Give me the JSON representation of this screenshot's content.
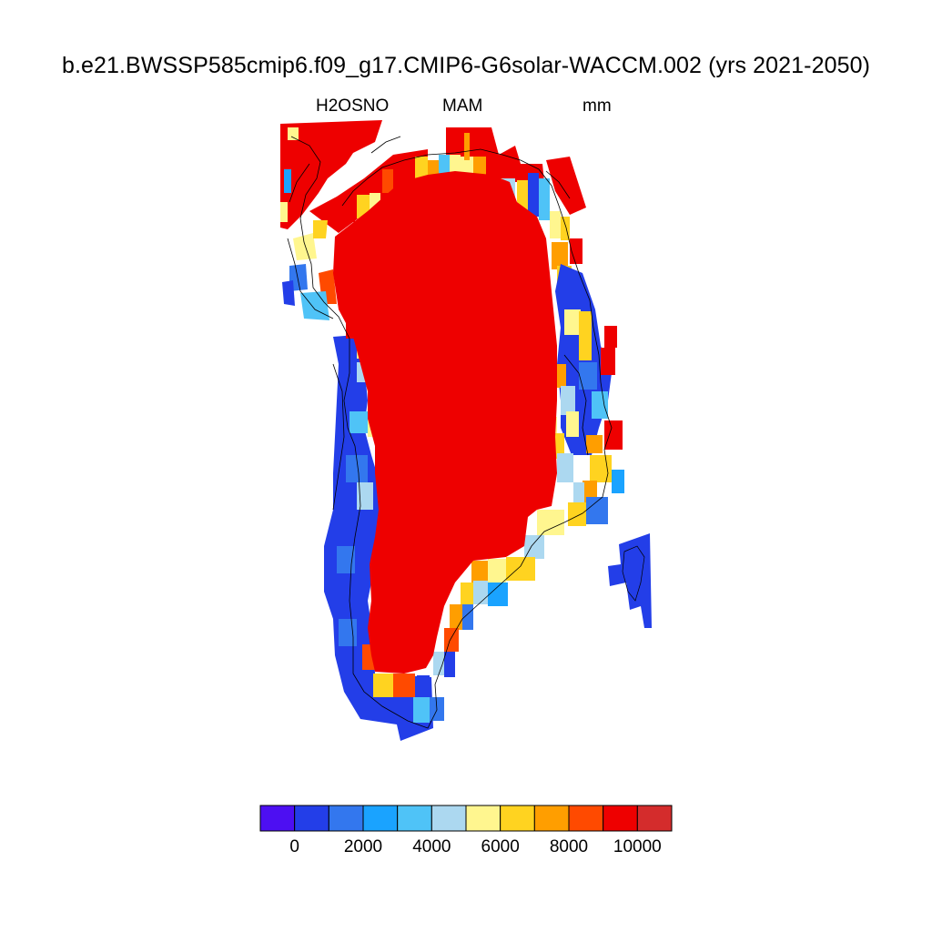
{
  "title": "b.e21.BWSSP585cmip6.f09_g17.CMIP6-G6solar-WACCM.002 (yrs 2021-2050)",
  "subtitle": {
    "variable": "H2OSNO",
    "season": "MAM",
    "units": "mm"
  },
  "colorbar": {
    "colors": [
      "#4d0ff2",
      "#233ee8",
      "#3377ee",
      "#1aa3ff",
      "#4fc3f7",
      "#acd8f0",
      "#fff68f",
      "#ffd320",
      "#ff9e00",
      "#ff4a00",
      "#ee0000",
      "#d42c2c"
    ],
    "tick_labels": [
      "0",
      "2000",
      "4000",
      "6000",
      "8000",
      "10000"
    ]
  },
  "chart_data": {
    "type": "heatmap",
    "title": "b.e21.BWSSP585cmip6.f09_g17.CMIP6-G6solar-WACCM.002 (yrs 2021-2050)",
    "variable": "H2OSNO",
    "season": "MAM",
    "units": "mm",
    "region": "Greenland",
    "color_levels": [
      -1000,
      0,
      1000,
      2000,
      3000,
      4000,
      5000,
      6000,
      7000,
      8000,
      9000,
      10000,
      11000
    ],
    "interior_value_estimate": ">10000",
    "coastal_value_estimate": "0-5000",
    "legend_placement": "bottom"
  }
}
